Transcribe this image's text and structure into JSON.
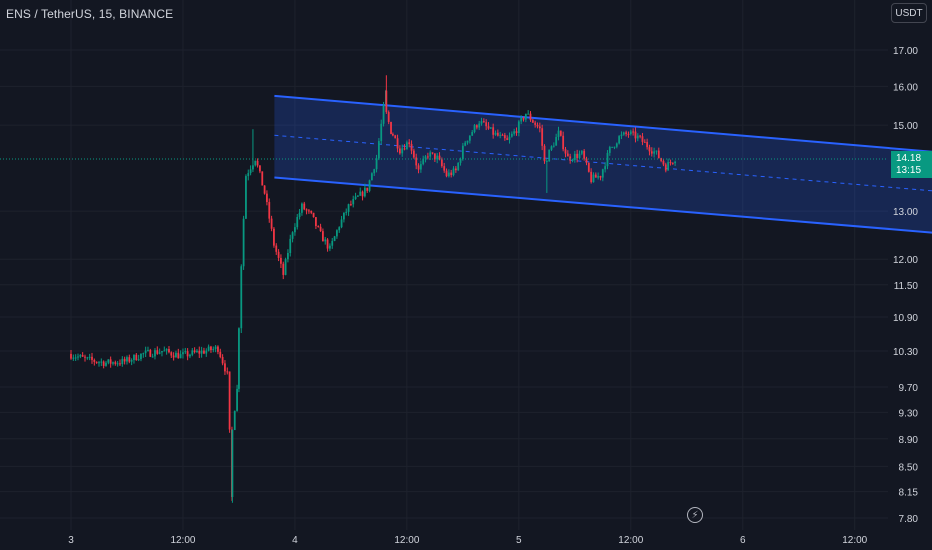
{
  "header": {
    "symbol": "ENS / TetherUS, 15, BINANCE",
    "currency": "USDT"
  },
  "last_price": {
    "value": "14.18",
    "countdown": "13:15",
    "color": "#089981"
  },
  "colors": {
    "background": "#131722",
    "up": "#089981",
    "down": "#f23645",
    "channel": "#2962ff",
    "text": "#d1d4dc"
  },
  "icons": {
    "replay": "lightning-bolt-icon"
  },
  "chart_data": {
    "type": "candlestick",
    "y_axis": {
      "scale": "log",
      "ticks": [
        "17.00",
        "16.00",
        "15.00",
        "13.00",
        "12.00",
        "11.50",
        "10.90",
        "10.30",
        "9.70",
        "9.30",
        "8.90",
        "8.50",
        "8.15",
        "7.80"
      ]
    },
    "x_axis": {
      "ticks": [
        "3",
        "12:00",
        "4",
        "12:00",
        "5",
        "12:00",
        "6",
        "12:00"
      ],
      "tick_hours": [
        0,
        12,
        24,
        36,
        48,
        60,
        72,
        84
      ]
    },
    "channel": {
      "upper": [
        [
          21.8,
          15.75
        ],
        [
          95.0,
          14.3
        ]
      ],
      "lower": [
        [
          21.8,
          13.75
        ],
        [
          95.0,
          12.5
        ]
      ],
      "middle": [
        [
          21.8,
          14.75
        ],
        [
          95.0,
          13.4
        ]
      ]
    },
    "series": [
      {
        "name": "ENS/USDT",
        "points": [
          [
            0,
            10.25
          ],
          [
            2,
            10.15
          ],
          [
            4,
            10.1
          ],
          [
            6,
            10.12
          ],
          [
            8,
            10.25
          ],
          [
            10,
            10.3
          ],
          [
            12,
            10.22
          ],
          [
            14,
            10.28
          ],
          [
            16,
            10.35
          ],
          [
            17,
            9.9
          ],
          [
            17.3,
            8.8
          ],
          [
            18,
            9.6
          ],
          [
            18.5,
            11.9
          ],
          [
            19,
            13.8
          ],
          [
            20,
            14.2
          ],
          [
            21,
            13.4
          ],
          [
            22,
            12.3
          ],
          [
            23,
            11.7
          ],
          [
            24,
            12.6
          ],
          [
            25,
            13.1
          ],
          [
            26,
            12.9
          ],
          [
            27,
            12.5
          ],
          [
            28,
            12.2
          ],
          [
            29,
            12.7
          ],
          [
            30,
            13.1
          ],
          [
            31,
            13.3
          ],
          [
            32,
            13.5
          ],
          [
            33,
            14.2
          ],
          [
            33.8,
            15.5
          ],
          [
            34.5,
            14.9
          ],
          [
            35.5,
            14.4
          ],
          [
            36.5,
            14.6
          ],
          [
            37.5,
            13.9
          ],
          [
            38.5,
            14.3
          ],
          [
            39.5,
            14.2
          ],
          [
            40.5,
            13.8
          ],
          [
            41.5,
            13.9
          ],
          [
            42.5,
            14.6
          ],
          [
            44,
            15.1
          ],
          [
            45.5,
            14.8
          ],
          [
            47,
            14.6
          ],
          [
            48,
            14.9
          ],
          [
            49,
            15.3
          ],
          [
            50.5,
            14.9
          ],
          [
            51,
            14.1
          ],
          [
            52.5,
            14.8
          ],
          [
            53.5,
            14.2
          ],
          [
            55,
            14.3
          ],
          [
            56,
            13.7
          ],
          [
            57,
            13.8
          ],
          [
            58,
            14.4
          ],
          [
            59,
            14.7
          ],
          [
            60,
            14.8
          ],
          [
            61,
            14.7
          ],
          [
            62,
            14.5
          ],
          [
            63,
            14.3
          ],
          [
            64,
            14.0
          ],
          [
            65,
            14.2
          ]
        ]
      }
    ]
  }
}
